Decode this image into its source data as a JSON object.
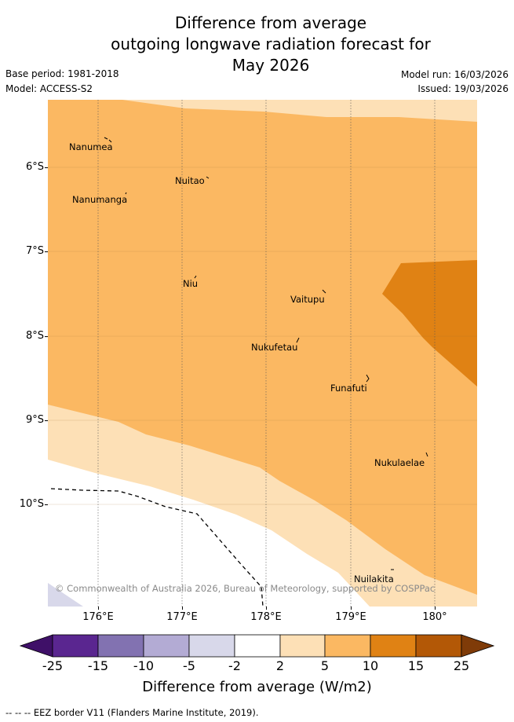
{
  "title": {
    "line1": "Difference from average",
    "line2": "outgoing longwave radiation forecast for",
    "line3": "May 2026"
  },
  "meta": {
    "base_period": "Base period: 1981-2018",
    "model": "Model: ACCESS-S2",
    "model_run": "Model run: 16/03/2026",
    "issued": "Issued: 19/03/2026"
  },
  "axes": {
    "lat_labels": [
      "6°S",
      "7°S",
      "8°S",
      "9°S",
      "10°S"
    ],
    "lon_labels": [
      "176°E",
      "177°E",
      "178°E",
      "179°E",
      "180°"
    ]
  },
  "places": [
    "Nanumea",
    "Nuitao",
    "Nanumanga",
    "Niu",
    "Vaitupu",
    "Nukufetau",
    "Funafuti",
    "Nukulaelae",
    "Nuilakita"
  ],
  "copyright": "© Commonwealth of Australia 2026, Bureau of Meteorology, supported by COSPPac",
  "colorbar": {
    "title": "Difference from average (W/m2)",
    "tick_labels": [
      "-25",
      "-15",
      "-10",
      "-5",
      "-2",
      "2",
      "5",
      "10",
      "15",
      "25"
    ],
    "colors": {
      "below_min": "#3f1068",
      "c_-25_-15": "#5a2690",
      "c_-15_-10": "#8272b1",
      "c_-10_-5": "#b3abd4",
      "c_-5_-2": "#d8d8ea",
      "c_-2_2": "#ffffff",
      "c_2_5": "#fde0b6",
      "c_5_10": "#fbb862",
      "c_10_15": "#e08214",
      "c_15_25": "#b35806",
      "above_max": "#7f3b08"
    }
  },
  "legend": "-- -- -- EEZ border V11 (Flanders Marine Institute, 2019)."
}
